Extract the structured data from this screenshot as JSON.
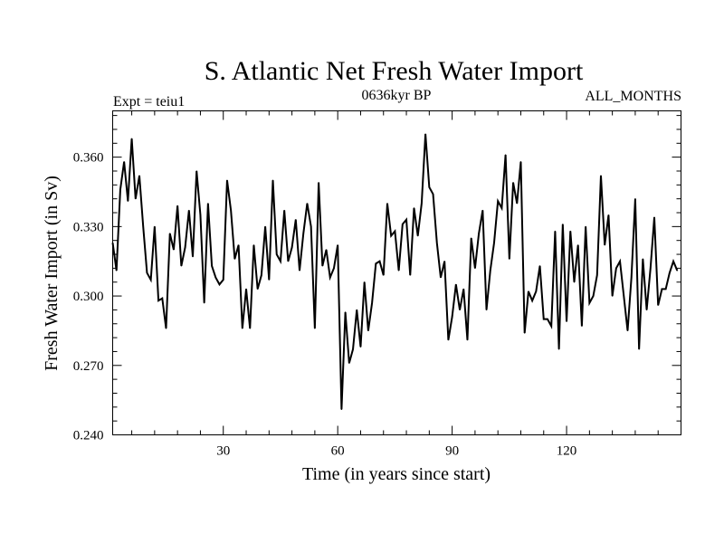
{
  "chart_data": {
    "type": "line",
    "title": "S. Atlantic Net Fresh Water Import",
    "subtitle_left": "Expt = teiu1",
    "subtitle_center": "0636kyr BP",
    "subtitle_right": "ALL_MONTHS",
    "xlabel": "Time (in years since start)",
    "ylabel": "Fresh Water Import (in Sv)",
    "xlim": [
      1,
      150
    ],
    "ylim": [
      0.24,
      0.38
    ],
    "xticks": [
      30,
      60,
      90,
      120
    ],
    "yticks": [
      0.24,
      0.27,
      0.3,
      0.33,
      0.36
    ],
    "ytick_labels": [
      "0.240",
      "0.270",
      "0.300",
      "0.330",
      "0.360"
    ],
    "line_color": "#000000",
    "series": [
      {
        "name": "S. Atlantic Net Fresh Water Import",
        "x_start": 1,
        "values": [
          0.323,
          0.311,
          0.346,
          0.358,
          0.341,
          0.368,
          0.342,
          0.352,
          0.33,
          0.31,
          0.307,
          0.33,
          0.298,
          0.299,
          0.286,
          0.327,
          0.32,
          0.339,
          0.313,
          0.321,
          0.337,
          0.317,
          0.354,
          0.335,
          0.297,
          0.34,
          0.313,
          0.308,
          0.305,
          0.307,
          0.35,
          0.337,
          0.316,
          0.322,
          0.286,
          0.303,
          0.286,
          0.322,
          0.303,
          0.309,
          0.33,
          0.307,
          0.35,
          0.318,
          0.315,
          0.337,
          0.315,
          0.321,
          0.333,
          0.311,
          0.327,
          0.34,
          0.33,
          0.286,
          0.349,
          0.313,
          0.32,
          0.308,
          0.312,
          0.322,
          0.251,
          0.293,
          0.271,
          0.277,
          0.294,
          0.278,
          0.306,
          0.285,
          0.297,
          0.314,
          0.315,
          0.309,
          0.34,
          0.326,
          0.328,
          0.311,
          0.331,
          0.333,
          0.309,
          0.338,
          0.326,
          0.34,
          0.37,
          0.347,
          0.344,
          0.323,
          0.308,
          0.315,
          0.281,
          0.291,
          0.305,
          0.294,
          0.303,
          0.281,
          0.325,
          0.312,
          0.327,
          0.337,
          0.294,
          0.311,
          0.323,
          0.341,
          0.338,
          0.361,
          0.316,
          0.349,
          0.34,
          0.358,
          0.284,
          0.302,
          0.298,
          0.302,
          0.313,
          0.29,
          0.29,
          0.287,
          0.328,
          0.277,
          0.331,
          0.289,
          0.328,
          0.306,
          0.322,
          0.287,
          0.33,
          0.297,
          0.3,
          0.309,
          0.352,
          0.322,
          0.335,
          0.3,
          0.312,
          0.315,
          0.3,
          0.285,
          0.308,
          0.342,
          0.277,
          0.316,
          0.294,
          0.312,
          0.334,
          0.296,
          0.303,
          0.303,
          0.31,
          0.315,
          0.311
        ]
      }
    ]
  }
}
